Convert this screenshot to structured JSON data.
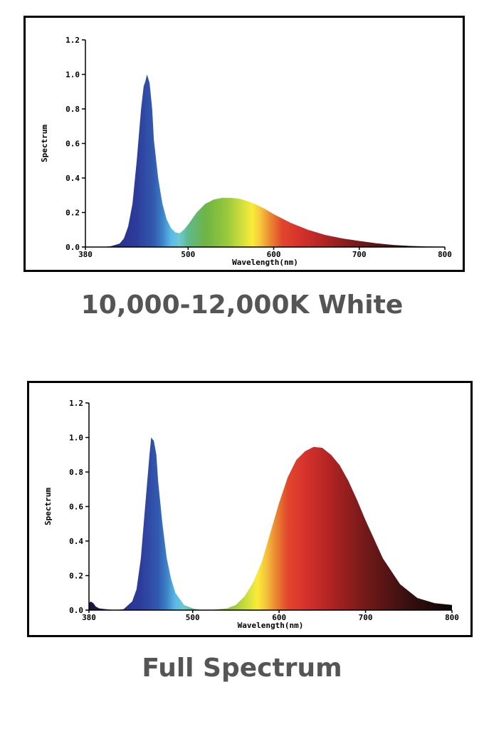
{
  "captions": [
    "10,000-12,000K White",
    "Full Spectrum"
  ],
  "chart_data": [
    {
      "type": "area",
      "title": "10,000-12,000K White",
      "xlabel": "Wavelength(nm)",
      "ylabel": "Spectrum",
      "xlim": [
        380,
        800
      ],
      "ylim": [
        0,
        1.2
      ],
      "xticks": [
        "380",
        "500",
        "600",
        "700",
        "800"
      ],
      "yticks": [
        "0.0",
        "0.2",
        "0.4",
        "0.6",
        "0.8",
        "1.0",
        "1.2"
      ],
      "grid": false,
      "series": [
        {
          "x": [
            400,
            410,
            420,
            425,
            430,
            435,
            440,
            445,
            448,
            450,
            452,
            455,
            458,
            460,
            465,
            470,
            475,
            480,
            485,
            490,
            495,
            500,
            510,
            520,
            530,
            540,
            550,
            560,
            570,
            580,
            590,
            600,
            620,
            640,
            660,
            680,
            700,
            720,
            740,
            760,
            780,
            800
          ],
          "y": [
            0.0,
            0.005,
            0.02,
            0.05,
            0.12,
            0.25,
            0.5,
            0.8,
            0.93,
            0.96,
            1.0,
            0.95,
            0.8,
            0.62,
            0.4,
            0.25,
            0.16,
            0.11,
            0.085,
            0.08,
            0.1,
            0.13,
            0.2,
            0.25,
            0.275,
            0.285,
            0.285,
            0.28,
            0.265,
            0.245,
            0.22,
            0.19,
            0.14,
            0.1,
            0.07,
            0.05,
            0.035,
            0.022,
            0.012,
            0.006,
            0.003,
            0.002
          ]
        }
      ]
    },
    {
      "type": "area",
      "title": "Full Spectrum",
      "xlabel": "Wavelength(nm)",
      "ylabel": "Spectrum",
      "xlim": [
        380,
        800
      ],
      "ylim": [
        0,
        1.2
      ],
      "xticks": [
        "380",
        "500",
        "600",
        "700",
        "800"
      ],
      "yticks": [
        "0.0",
        "0.2",
        "0.4",
        "0.6",
        "0.8",
        "1.0",
        "1.2"
      ],
      "grid": false,
      "series": [
        {
          "x": [
            380,
            382,
            385,
            388,
            392,
            400,
            410,
            420,
            430,
            435,
            440,
            445,
            450,
            452,
            455,
            458,
            460,
            465,
            470,
            475,
            480,
            490,
            500,
            510,
            520,
            530,
            540,
            550,
            560,
            570,
            580,
            590,
            600,
            610,
            620,
            630,
            640,
            650,
            660,
            670,
            680,
            690,
            700,
            720,
            740,
            760,
            780,
            800
          ],
          "y": [
            0.04,
            0.05,
            0.04,
            0.02,
            0.01,
            0.005,
            0.0,
            0.005,
            0.05,
            0.12,
            0.3,
            0.6,
            0.9,
            1.0,
            0.98,
            0.9,
            0.75,
            0.5,
            0.3,
            0.18,
            0.1,
            0.03,
            0.01,
            0.0,
            0.0,
            0.005,
            0.01,
            0.03,
            0.08,
            0.16,
            0.28,
            0.45,
            0.62,
            0.77,
            0.87,
            0.92,
            0.945,
            0.94,
            0.9,
            0.84,
            0.75,
            0.64,
            0.52,
            0.3,
            0.15,
            0.07,
            0.04,
            0.03
          ]
        }
      ]
    }
  ]
}
